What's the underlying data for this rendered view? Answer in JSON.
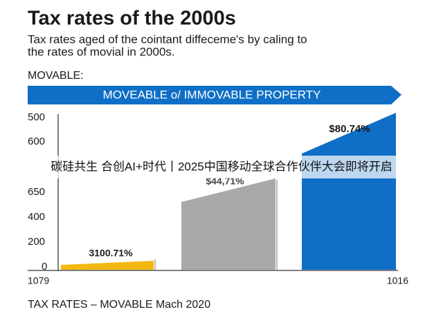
{
  "header": {
    "title": "Tax rates of the 2000s",
    "subtitle": [
      "Tax rates aged of the cointant diffeceme's by caling to",
      "the rates of movial in 2000s."
    ],
    "label": "MOVABLE:"
  },
  "banner": "MOVEABLE o/ IMMOVABLE PROPERTY",
  "y_labels": [
    "500",
    "600",
    "650",
    "400",
    "200",
    "0"
  ],
  "bar_labels": [
    "3100.71%",
    "$44,71%",
    "$80.74%"
  ],
  "x_labels": [
    "1079",
    "1016"
  ],
  "footer": "TAX RATES – MOVABLE Mach 2020",
  "overlay": "碳硅共生 合创AI+时代丨2025中国移动全球合作伙伴大会即将开启"
}
